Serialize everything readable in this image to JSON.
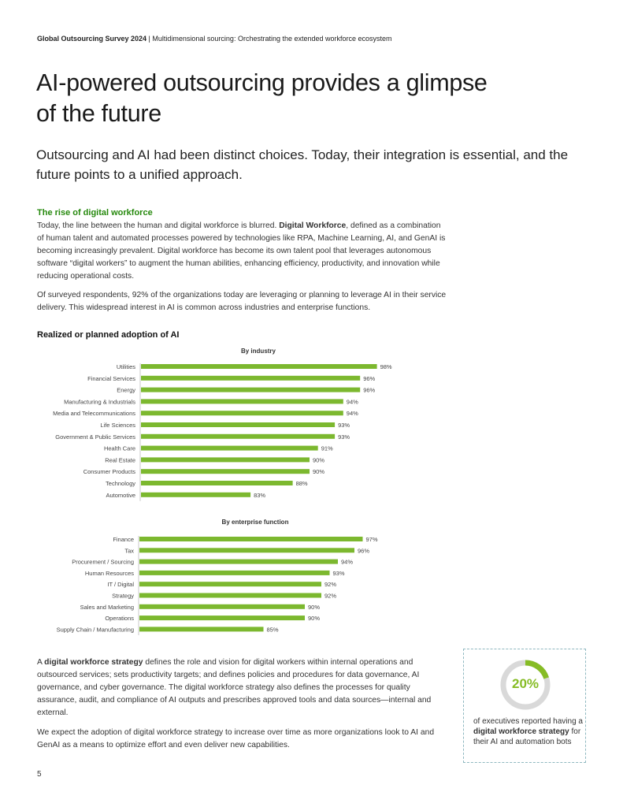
{
  "header": {
    "report": "Global Outsourcing Survey 2024",
    "separator": " | ",
    "subtitle": "Multidimensional sourcing: Orchestrating the extended workforce ecosystem"
  },
  "title": "AI-powered outsourcing provides a glimpse of the future",
  "lead": "Outsourcing and AI had been distinct choices. Today, their integration is essential, and the future points to a unified approach.",
  "section_title": "The rise of digital workforce",
  "para1": {
    "before": "Today, the line between the human and digital workforce is blurred. ",
    "bold": "Digital Workforce",
    "after": ", defined as a combination of human talent and automated processes powered by technologies like RPA, Machine Learning, AI, and GenAI is becoming increasingly prevalent. Digital workforce has become its own talent pool that leverages autonomous software “digital workers” to augment the human abilities, enhancing efficiency, productivity, and innovation while reducing operational costs."
  },
  "para2": "Of surveyed respondents, 92% of the organizations today are leveraging or planning to leverage AI in their service delivery. This widespread interest in AI is common across industries and enterprise functions.",
  "chart_section_title": "Realized or planned adoption of AI",
  "colors": {
    "bar": "#7cb82f",
    "accent_green": "#26890d",
    "callout_green": "#86bc25",
    "donut_track": "#d9d9d9"
  },
  "chart_data": [
    {
      "type": "bar",
      "title": "By industry",
      "orientation": "horizontal",
      "categories": [
        "Utilities",
        "Financial Services",
        "Energy",
        "Manufacturing & Industrials",
        "Media and Telecommunications",
        "Life Sciences",
        "Government & Public Services",
        "Health Care",
        "Real Estate",
        "Consumer Products",
        "Technology",
        "Automotive"
      ],
      "values": [
        98,
        96,
        96,
        94,
        94,
        93,
        93,
        91,
        90,
        90,
        88,
        83
      ],
      "value_labels": [
        "98%",
        "96%",
        "96%",
        "94%",
        "94%",
        "93%",
        "93%",
        "91%",
        "90%",
        "90%",
        "88%",
        "83%"
      ],
      "xlim": [
        70,
        100
      ]
    },
    {
      "type": "bar",
      "title": "By enterprise function",
      "orientation": "horizontal",
      "categories": [
        "Finance",
        "Tax",
        "Procurement / Sourcing",
        "Human Resources",
        "IT / Digital",
        "Strategy",
        "Sales and Marketing",
        "Operations",
        "Supply Chain / Manufacturing"
      ],
      "values": [
        97,
        96,
        94,
        93,
        92,
        92,
        90,
        90,
        85
      ],
      "value_labels": [
        "97%",
        "96%",
        "94%",
        "93%",
        "92%",
        "92%",
        "90%",
        "90%",
        "85%"
      ],
      "xlim": [
        70,
        100
      ]
    }
  ],
  "para3": {
    "before": "A ",
    "bold": "digital workforce strategy",
    "after": " defines the role and vision for digital workers within internal operations and outsourced services; sets productivity targets; and defines policies and procedures for data governance, AI governance, and cyber governance. The digital workforce strategy also defines the processes for quality assurance, audit, and compliance of AI outputs and prescribes approved tools and data sources—internal and external."
  },
  "para4": "We expect the adoption of digital workforce strategy to increase over time as more organizations look to AI and GenAI as a means to optimize effort and even deliver new capabilities.",
  "callout": {
    "value": "20%",
    "fraction": 0.2,
    "text_before": "of executives reported having a ",
    "text_bold": "digital workforce strategy",
    "text_after": " for their AI and automation bots"
  },
  "page_number": "5"
}
